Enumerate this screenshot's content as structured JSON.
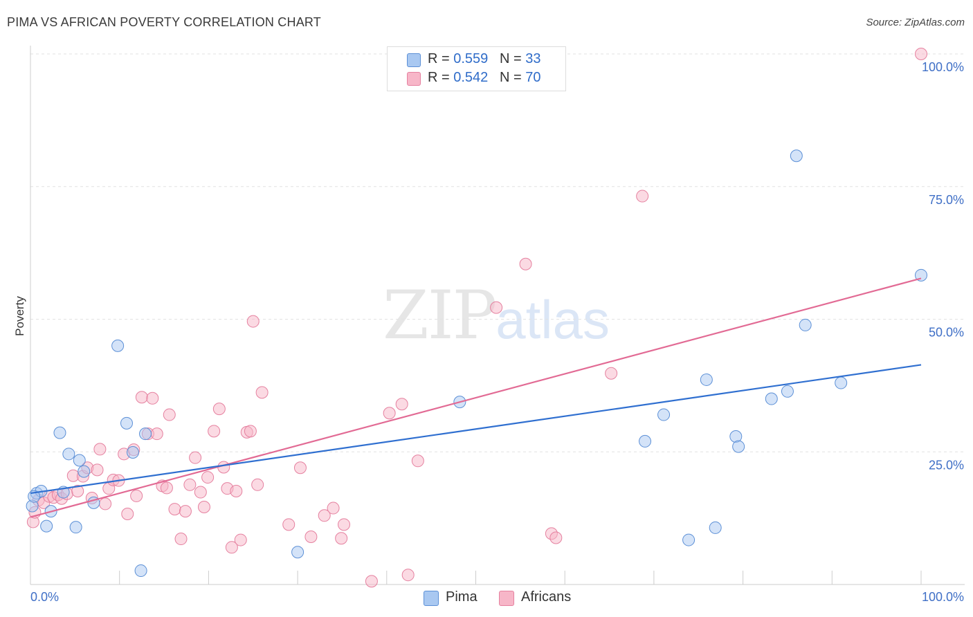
{
  "header": {
    "title": "PIMA VS AFRICAN POVERTY CORRELATION CHART",
    "source": "Source: ZipAtlas.com"
  },
  "watermark": {
    "zip": "ZIP",
    "atlas": "atlas"
  },
  "legend": {
    "rows": [
      {
        "r_label": "R = ",
        "r_value": "0.559",
        "n_label": "N = ",
        "n_value": "33",
        "color": "#a9c8f1"
      },
      {
        "r_label": "R = ",
        "r_value": "0.542",
        "n_label": "N = ",
        "n_value": "70",
        "color": "#f7b6c8"
      }
    ]
  },
  "bottom_legend": {
    "pima": "Pima",
    "africans": "Africans"
  },
  "colors": {
    "pima_fill": "#a9c8f1",
    "pima_stroke": "#5b8fd6",
    "pima_line": "#2f6fd0",
    "africans_fill": "#f7b6c8",
    "africans_stroke": "#e5809f",
    "africans_line": "#e26a94",
    "axis_text": "#3f6fc6",
    "grid": "#e2e2e2"
  },
  "chart_data": {
    "type": "scatter",
    "title": "PIMA VS AFRICAN POVERTY CORRELATION CHART",
    "xlabel": "",
    "ylabel": "Poverty",
    "xlim": [
      0,
      100
    ],
    "ylim": [
      0,
      100
    ],
    "x_tick_labels": [
      "0.0%",
      "100.0%"
    ],
    "y_tick_labels": [
      "25.0%",
      "50.0%",
      "75.0%",
      "100.0%"
    ],
    "y_tick_values": [
      25,
      50,
      75,
      100
    ],
    "grid": true,
    "legend_position": "top-center",
    "series": [
      {
        "name": "Pima",
        "points": [
          [
            0.2,
            14.8
          ],
          [
            0.7,
            17.2
          ],
          [
            1.2,
            17.6
          ],
          [
            1.8,
            11.0
          ],
          [
            2.3,
            13.8
          ],
          [
            3.3,
            28.6
          ],
          [
            4.3,
            24.6
          ],
          [
            5.1,
            10.8
          ],
          [
            5.5,
            23.4
          ],
          [
            6.0,
            21.3
          ],
          [
            3.7,
            17.4
          ],
          [
            7.1,
            15.4
          ],
          [
            9.8,
            45.0
          ],
          [
            10.8,
            30.4
          ],
          [
            11.5,
            24.9
          ],
          [
            12.9,
            28.4
          ],
          [
            12.4,
            2.6
          ],
          [
            30.0,
            6.1
          ],
          [
            48.2,
            34.4
          ],
          [
            69.0,
            27.0
          ],
          [
            71.1,
            32.0
          ],
          [
            73.9,
            8.4
          ],
          [
            75.9,
            38.6
          ],
          [
            76.9,
            10.7
          ],
          [
            79.2,
            27.9
          ],
          [
            79.5,
            26.0
          ],
          [
            83.2,
            35.0
          ],
          [
            85.0,
            36.4
          ],
          [
            86.0,
            80.8
          ],
          [
            87.0,
            48.9
          ],
          [
            91.0,
            38.0
          ],
          [
            100.0,
            58.3
          ],
          [
            0.4,
            16.6
          ]
        ],
        "trend": [
          [
            0,
            17.2
          ],
          [
            100,
            41.4
          ]
        ]
      },
      {
        "name": "Africans",
        "points": [
          [
            0.3,
            11.8
          ],
          [
            0.5,
            13.6
          ],
          [
            0.9,
            15.9
          ],
          [
            1.5,
            15.4
          ],
          [
            2.1,
            16.6
          ],
          [
            2.6,
            16.4
          ],
          [
            3.1,
            16.9
          ],
          [
            3.5,
            16.2
          ],
          [
            4.1,
            17.1
          ],
          [
            4.8,
            20.5
          ],
          [
            5.3,
            17.6
          ],
          [
            5.9,
            20.4
          ],
          [
            6.4,
            22.0
          ],
          [
            6.9,
            16.3
          ],
          [
            7.5,
            21.6
          ],
          [
            7.8,
            25.5
          ],
          [
            8.4,
            15.2
          ],
          [
            8.8,
            18.1
          ],
          [
            9.3,
            19.7
          ],
          [
            9.9,
            19.6
          ],
          [
            10.5,
            24.6
          ],
          [
            10.9,
            13.3
          ],
          [
            11.6,
            25.4
          ],
          [
            11.9,
            16.7
          ],
          [
            12.5,
            35.3
          ],
          [
            13.2,
            28.4
          ],
          [
            13.7,
            35.1
          ],
          [
            14.2,
            28.4
          ],
          [
            14.8,
            18.6
          ],
          [
            15.3,
            18.2
          ],
          [
            15.6,
            32.0
          ],
          [
            16.2,
            14.2
          ],
          [
            16.9,
            8.6
          ],
          [
            17.4,
            13.8
          ],
          [
            17.9,
            18.8
          ],
          [
            18.5,
            23.9
          ],
          [
            19.1,
            17.4
          ],
          [
            19.5,
            14.6
          ],
          [
            19.9,
            20.2
          ],
          [
            20.6,
            28.9
          ],
          [
            21.2,
            33.1
          ],
          [
            21.7,
            22.1
          ],
          [
            22.1,
            18.1
          ],
          [
            22.6,
            7.0
          ],
          [
            23.1,
            17.6
          ],
          [
            23.6,
            8.4
          ],
          [
            24.3,
            28.7
          ],
          [
            24.7,
            28.9
          ],
          [
            25.0,
            49.6
          ],
          [
            25.5,
            18.8
          ],
          [
            26.0,
            36.2
          ],
          [
            29.0,
            11.3
          ],
          [
            30.3,
            22.0
          ],
          [
            31.5,
            9.0
          ],
          [
            33.0,
            13.0
          ],
          [
            34.0,
            14.4
          ],
          [
            34.9,
            8.7
          ],
          [
            35.2,
            11.3
          ],
          [
            38.3,
            0.6
          ],
          [
            40.3,
            32.3
          ],
          [
            41.7,
            34.0
          ],
          [
            42.4,
            1.8
          ],
          [
            43.5,
            23.3
          ],
          [
            52.3,
            52.2
          ],
          [
            55.6,
            60.4
          ],
          [
            58.5,
            9.6
          ],
          [
            59.0,
            8.8
          ],
          [
            65.2,
            39.8
          ],
          [
            68.7,
            73.2
          ],
          [
            100.0,
            100.0
          ]
        ],
        "trend": [
          [
            0,
            12.7
          ],
          [
            100,
            57.7
          ]
        ]
      }
    ]
  }
}
